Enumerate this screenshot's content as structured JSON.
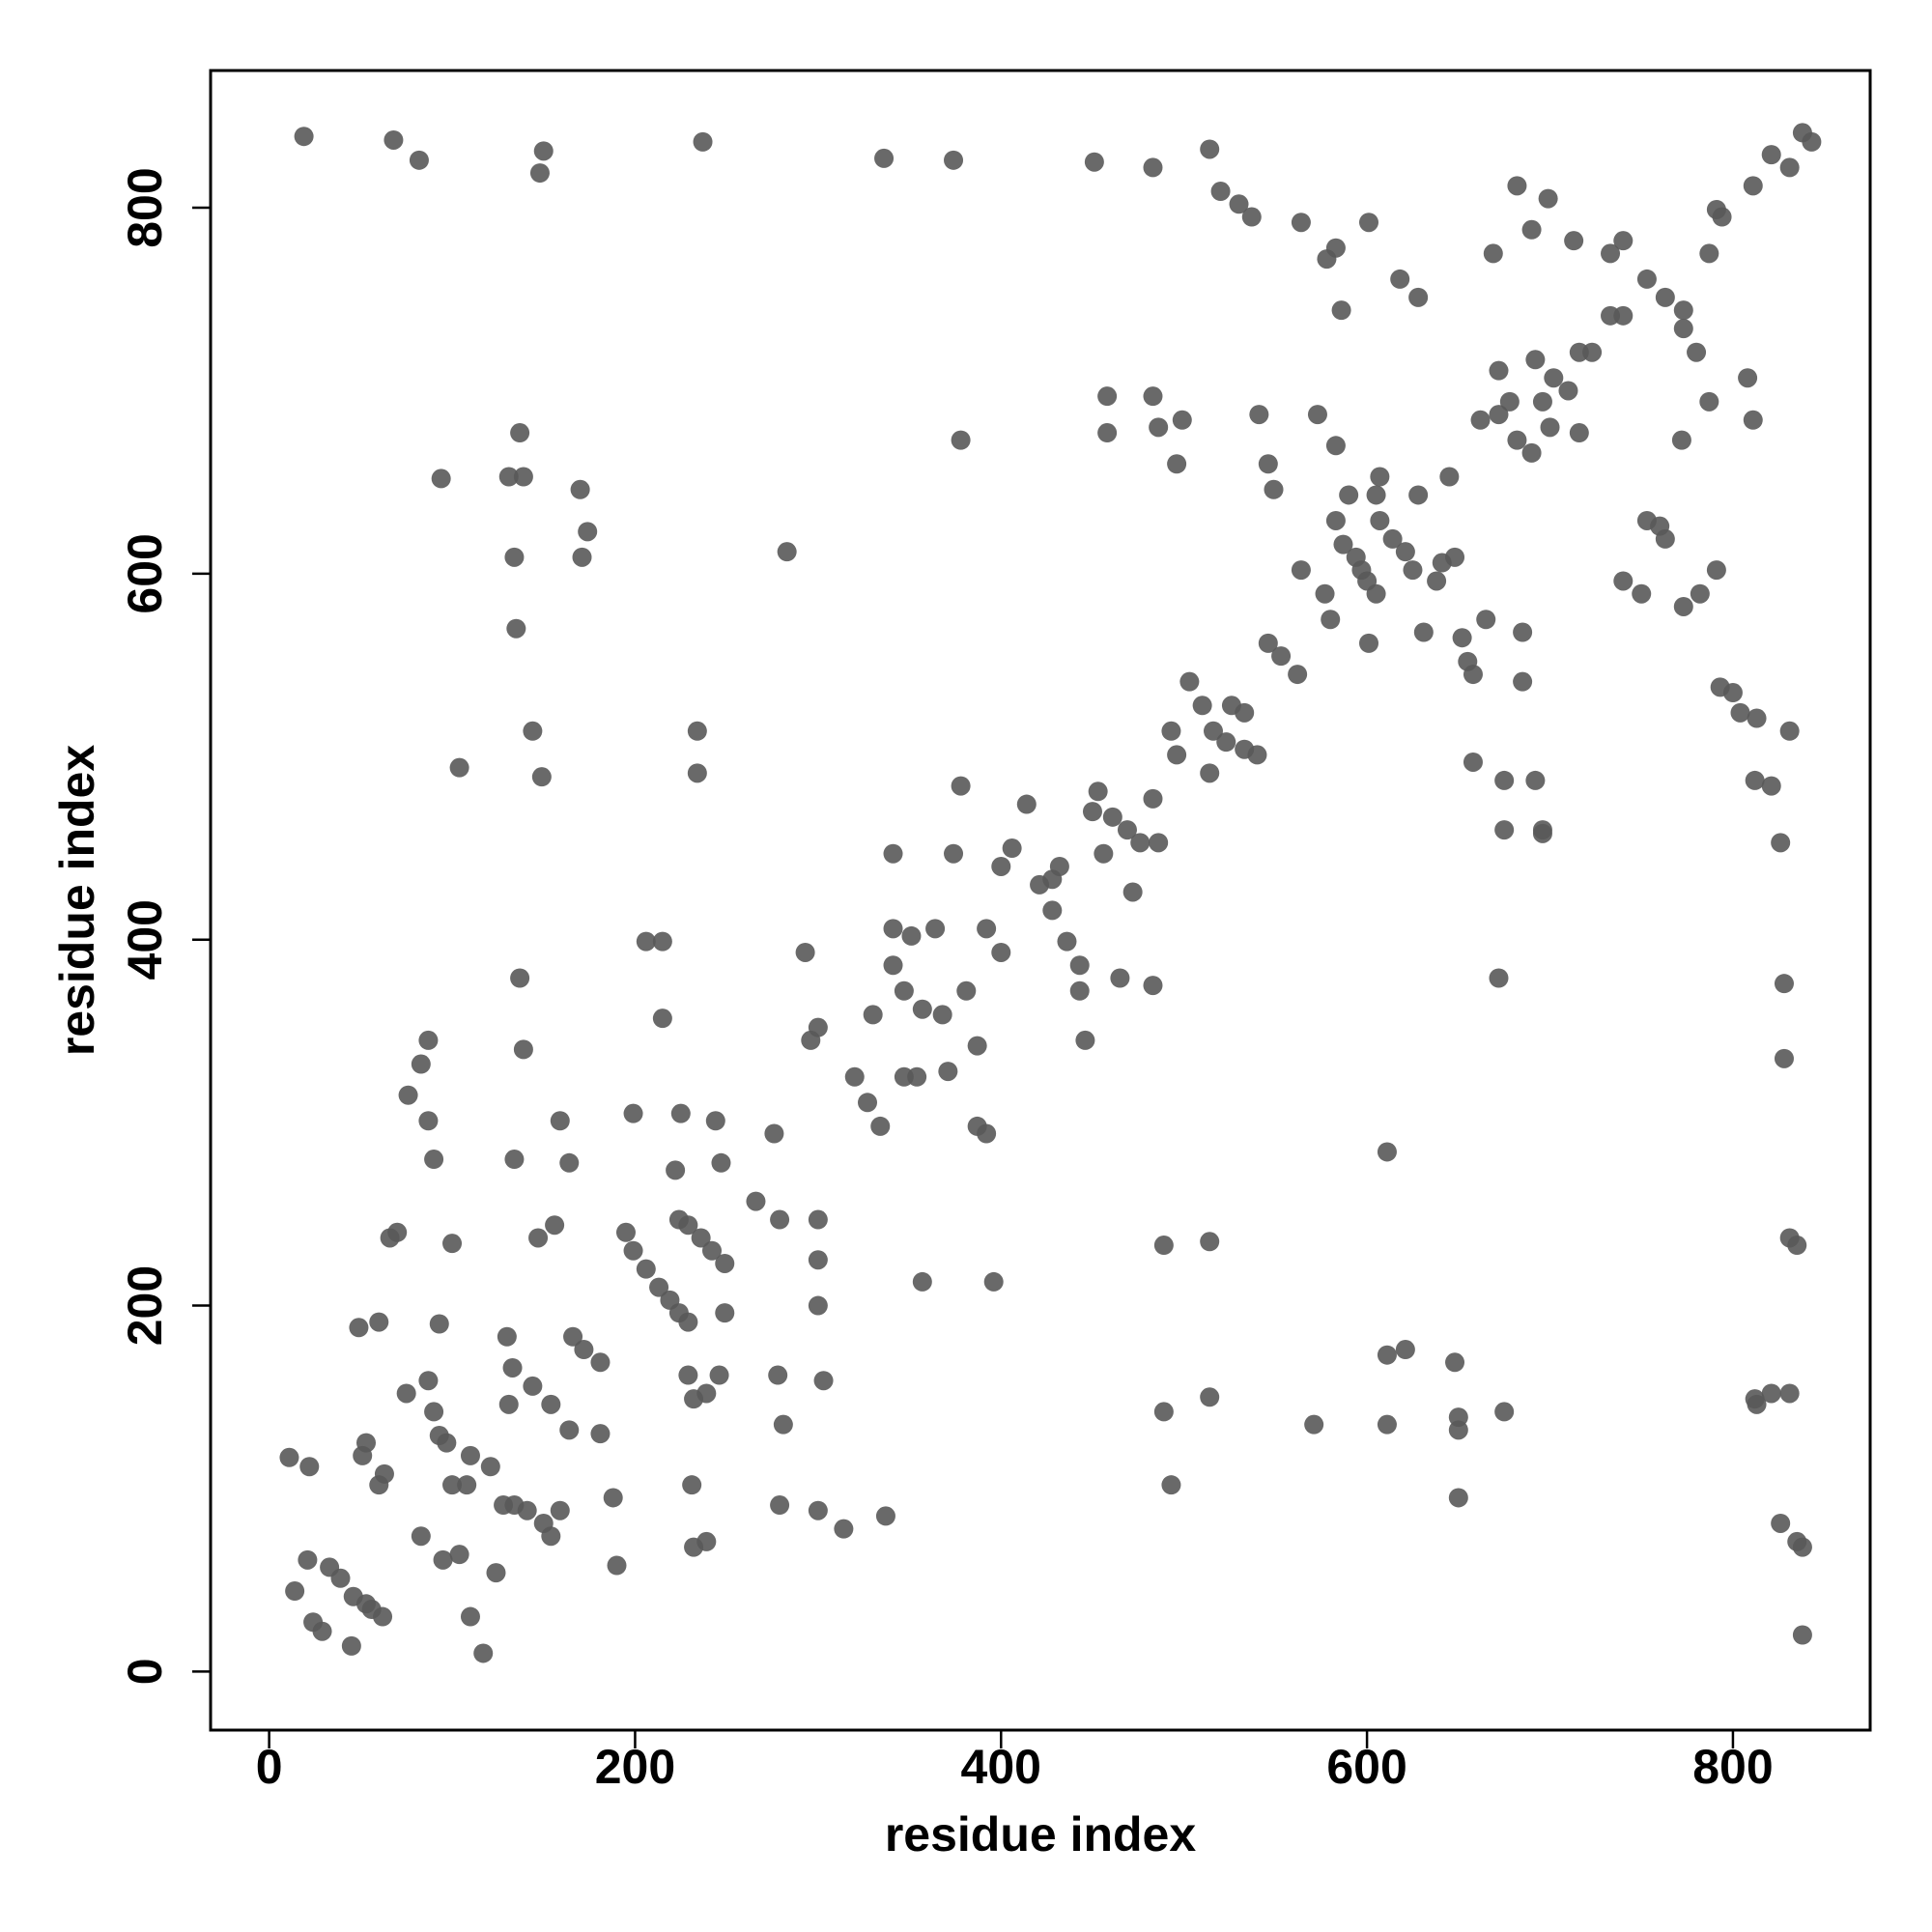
{
  "chart_data": {
    "type": "scatter",
    "xlabel": "residue index",
    "ylabel": "residue index",
    "xlim": [
      -32,
      875
    ],
    "ylim": [
      -32,
      875
    ],
    "xticks": [
      0,
      200,
      400,
      600,
      800
    ],
    "yticks": [
      0,
      200,
      400,
      600,
      800
    ],
    "grid": false,
    "color": "#595959",
    "x": [
      19,
      68,
      82,
      148,
      150,
      237,
      336,
      374,
      451,
      483,
      514,
      520,
      530,
      537,
      564,
      583,
      578,
      601,
      586,
      618,
      628,
      669,
      682,
      699,
      690,
      713,
      733,
      740,
      753,
      763,
      773,
      787,
      794,
      791,
      811,
      821,
      831,
      838,
      843,
      11,
      14,
      22,
      21,
      24,
      29,
      33,
      39,
      46,
      53,
      56,
      62,
      45,
      53,
      51,
      60,
      63,
      49,
      60,
      66,
      70,
      76,
      83,
      87,
      87,
      90,
      75,
      87,
      90,
      93,
      97,
      83,
      95,
      104,
      100,
      108,
      110,
      121,
      110,
      117,
      124,
      128,
      134,
      141,
      150,
      159,
      154,
      93,
      100,
      104,
      94,
      131,
      137,
      139,
      134,
      135,
      134,
      137,
      139,
      130,
      133,
      131,
      144,
      149,
      144,
      154,
      164,
      166,
      172,
      181,
      181,
      147,
      156,
      159,
      164,
      170,
      171,
      174,
      188,
      190,
      195,
      199,
      206,
      213,
      219,
      224,
      229,
      199,
      206,
      215,
      215,
      222,
      224,
      229,
      236,
      242,
      249,
      229,
      232,
      239,
      246,
      231,
      232,
      239,
      234,
      234,
      225,
      244,
      247,
      249,
      266,
      276,
      279,
      278,
      281,
      279,
      283,
      293,
      296,
      300,
      300,
      300,
      300,
      303,
      300,
      314,
      320,
      327,
      330,
      334,
      341,
      347,
      337,
      341,
      341,
      347,
      351,
      354,
      357,
      357,
      364,
      368,
      371,
      374,
      378,
      378,
      381,
      387,
      387,
      392,
      392,
      396,
      400,
      400,
      406,
      414,
      421,
      428,
      432,
      428,
      436,
      443,
      443,
      446,
      450,
      453,
      456,
      458,
      458,
      461,
      465,
      469,
      472,
      476,
      483,
      483,
      486,
      489,
      489,
      493,
      483,
      486,
      499,
      496,
      493,
      496,
      503,
      510,
      514,
      516,
      523,
      533,
      540,
      526,
      541,
      546,
      549,
      546,
      553,
      562,
      564,
      573,
      577,
      580,
      583,
      583,
      590,
      587,
      594,
      597,
      600,
      605,
      601,
      605,
      607,
      607,
      614,
      621,
      625,
      628,
      631,
      638,
      641,
      645,
      648,
      652,
      655,
      658,
      658,
      662,
      665,
      672,
      672,
      675,
      675,
      678,
      682,
      685,
      690,
      692,
      696,
      696,
      700,
      702,
      710,
      716,
      716,
      723,
      733,
      740,
      753,
      760,
      763,
      740,
      750,
      772,
      773,
      773,
      780,
      782,
      787,
      791,
      793,
      800,
      804,
      808,
      811,
      813,
      812,
      821,
      826,
      828,
      828,
      831,
      835,
      813,
      821,
      831,
      826,
      835,
      838,
      838,
      812,
      831,
      533,
      611,
      611,
      621,
      648,
      650,
      650,
      650,
      571,
      611,
      675,
      672,
      692,
      696,
      685,
      514,
      514
    ],
    "values": [
      839,
      837,
      826,
      819,
      831,
      836,
      827,
      826,
      825,
      822,
      832,
      809,
      802,
      795,
      792,
      778,
      772,
      792,
      744,
      761,
      751,
      775,
      812,
      805,
      788,
      782,
      775,
      782,
      761,
      751,
      744,
      775,
      795,
      799,
      812,
      829,
      822,
      841,
      836,
      117,
      44,
      112,
      61,
      27,
      22,
      57,
      51,
      41,
      37,
      34,
      30,
      14,
      125,
      118,
      102,
      108,
      188,
      191,
      237,
      240,
      315,
      332,
      345,
      301,
      280,
      152,
      159,
      142,
      129,
      125,
      74,
      61,
      64,
      102,
      102,
      118,
      112,
      30,
      10,
      54,
      91,
      91,
      88,
      81,
      88,
      74,
      190,
      234,
      494,
      652,
      653,
      677,
      653,
      609,
      570,
      280,
      379,
      340,
      183,
      166,
      146,
      514,
      489,
      156,
      146,
      132,
      183,
      176,
      169,
      130,
      237,
      244,
      301,
      278,
      646,
      609,
      623,
      95,
      58,
      240,
      230,
      220,
      210,
      203,
      196,
      191,
      305,
      399,
      399,
      357,
      274,
      247,
      244,
      237,
      230,
      223,
      162,
      149,
      152,
      162,
      102,
      68,
      71,
      514,
      491,
      305,
      301,
      278,
      196,
      257,
      294,
      247,
      162,
      135,
      91,
      612,
      393,
      345,
      352,
      247,
      225,
      200,
      159,
      88,
      78,
      325,
      311,
      359,
      298,
      386,
      372,
      85,
      447,
      406,
      325,
      402,
      325,
      362,
      213,
      406,
      359,
      328,
      447,
      484,
      673,
      372,
      342,
      298,
      294,
      406,
      213,
      393,
      440,
      450,
      474,
      430,
      433,
      440,
      416,
      399,
      386,
      372,
      345,
      470,
      481,
      447,
      697,
      677,
      467,
      379,
      460,
      426,
      453,
      477,
      375,
      453,
      233,
      142,
      102,
      697,
      680,
      684,
      660,
      514,
      501,
      541,
      528,
      491,
      514,
      508,
      504,
      501,
      528,
      687,
      660,
      646,
      562,
      555,
      545,
      602,
      687,
      589,
      575,
      670,
      629,
      643,
      616,
      609,
      602,
      596,
      589,
      562,
      643,
      653,
      629,
      619,
      612,
      602,
      643,
      568,
      596,
      606,
      653,
      609,
      565,
      552,
      545,
      497,
      684,
      575,
      687,
      711,
      487,
      460,
      694,
      673,
      568,
      666,
      717,
      694,
      460,
      680,
      707,
      700,
      721,
      677,
      721,
      741,
      741,
      629,
      626,
      619,
      596,
      589,
      673,
      734,
      582,
      721,
      589,
      694,
      602,
      538,
      535,
      524,
      707,
      684,
      521,
      487,
      484,
      453,
      376,
      335,
      237,
      233,
      146,
      152,
      152,
      81,
      71,
      68,
      20,
      149,
      514,
      524,
      284,
      173,
      176,
      169,
      139,
      132,
      95,
      135,
      135,
      142,
      379,
      487,
      458,
      541,
      150,
      235
    ]
  }
}
